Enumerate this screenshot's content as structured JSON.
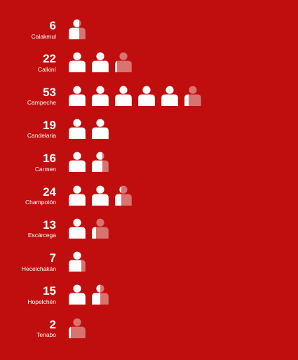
{
  "chart_data": {
    "type": "pictogram",
    "unit_per_icon": 10,
    "colors": {
      "background": "#c00d0d",
      "filled": "#ffffff",
      "empty": "#d9736f"
    },
    "rows": [
      {
        "label": "Calakmul",
        "value": 6,
        "value_text": "6"
      },
      {
        "label": "Calkiní",
        "value": 22,
        "value_text": "22"
      },
      {
        "label": "Campeche",
        "value": 53,
        "value_text": "53"
      },
      {
        "label": "Candelaria",
        "value": 19,
        "value_text": "19"
      },
      {
        "label": "Carmen",
        "value": 16,
        "value_text": "16"
      },
      {
        "label": "Champotón",
        "value": 24,
        "value_text": "24"
      },
      {
        "label": "Escárcega",
        "value": 13,
        "value_text": "13"
      },
      {
        "label": "Hecelchakán",
        "value": 7,
        "value_text": "7"
      },
      {
        "label": "Hopelchén",
        "value": 15,
        "value_text": "15"
      },
      {
        "label": "Tenabo",
        "value": 2,
        "value_text": "2"
      }
    ]
  }
}
